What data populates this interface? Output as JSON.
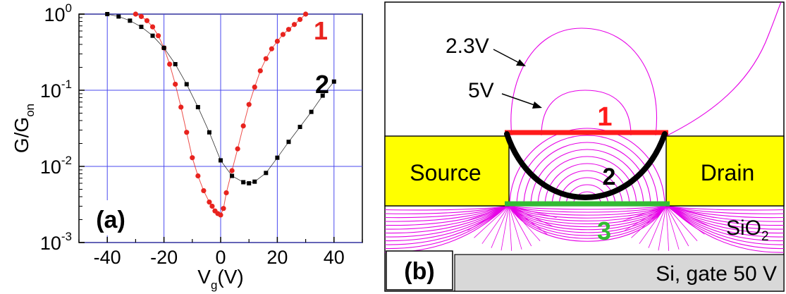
{
  "chart_data": [
    {
      "type": "scatter",
      "panel_label": "(a)",
      "xlabel": {
        "main": "V",
        "sub": "g",
        "rest": "(V)"
      },
      "ylabel": {
        "main": "G/G",
        "sub": "on"
      },
      "xlim": [
        -50,
        50
      ],
      "ylim": [
        0.001,
        1
      ],
      "yscale": "log",
      "grid": true,
      "x_ticks": [
        "-40",
        "-20",
        "0",
        "20",
        "40"
      ],
      "x_tick_values": [
        -40,
        -20,
        0,
        20,
        40
      ],
      "y_ticks": [
        {
          "value": 1,
          "base": "10",
          "exp": "0"
        },
        {
          "value": 0.1,
          "base": "10",
          "exp": "-1"
        },
        {
          "value": 0.01,
          "base": "10",
          "exp": "-2"
        },
        {
          "value": 0.001,
          "base": "10",
          "exp": "-3"
        }
      ],
      "series": [
        {
          "name": "1",
          "color": "#e8231e",
          "marker": "circle",
          "x": [
            -30,
            -28,
            -26,
            -24,
            -22,
            -20,
            -18,
            -16,
            -14,
            -12,
            -10,
            -8,
            -6,
            -4,
            -3,
            -2,
            -1,
            0,
            1,
            2,
            4,
            6,
            8,
            10,
            12,
            14,
            16,
            18,
            20,
            22,
            24,
            26,
            28,
            30
          ],
          "y": [
            1.0,
            0.93,
            0.82,
            0.68,
            0.52,
            0.36,
            0.22,
            0.12,
            0.06,
            0.028,
            0.013,
            0.0075,
            0.0048,
            0.0034,
            0.003,
            0.0026,
            0.0024,
            0.0023,
            0.0028,
            0.0045,
            0.0088,
            0.017,
            0.034,
            0.065,
            0.11,
            0.18,
            0.26,
            0.35,
            0.44,
            0.54,
            0.63,
            0.73,
            0.85,
            1.0
          ]
        },
        {
          "name": "2",
          "color": "#000000",
          "marker": "square",
          "x": [
            -40,
            -36,
            -32,
            -28,
            -24,
            -20,
            -16,
            -12,
            -8,
            -4,
            0,
            4,
            8,
            10,
            12,
            16,
            20,
            24,
            28,
            32,
            36,
            40
          ],
          "y": [
            1.0,
            0.93,
            0.82,
            0.68,
            0.52,
            0.36,
            0.22,
            0.12,
            0.06,
            0.028,
            0.012,
            0.0075,
            0.0062,
            0.006,
            0.0063,
            0.0082,
            0.013,
            0.021,
            0.033,
            0.052,
            0.085,
            0.13
          ]
        }
      ]
    },
    {
      "type": "diagram",
      "panel_label": "(b)",
      "labels": {
        "source": "Source",
        "drain": "Drain",
        "sio2_main": "SiO",
        "sio2_sub": "2",
        "si_gate": "Si, gate 50 V",
        "contour_outer": "2.3V",
        "contour_inner": "5V",
        "num1": "1",
        "num2": "2",
        "num3": "3"
      },
      "colors": {
        "electrode": "#ffff00",
        "si": "#d8d8d8",
        "field_line": "#e600e6",
        "channel1": "#ff1a1a",
        "channel2": "#000000",
        "channel3": "#33bb33"
      }
    }
  ]
}
